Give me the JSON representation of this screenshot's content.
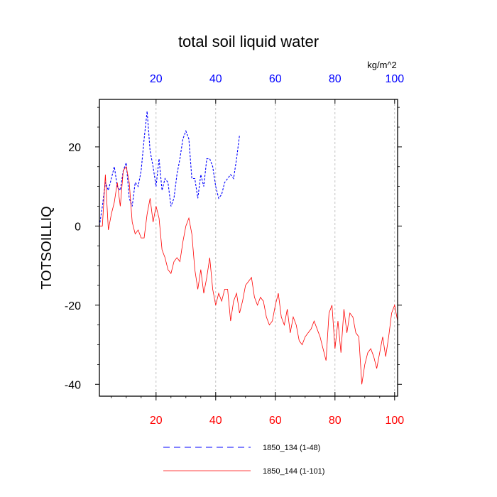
{
  "chart_data": {
    "type": "line",
    "title": "total soil liquid water",
    "units": "kg/m^2",
    "ylabel": "TOTSOILLIQ",
    "xlabel": "",
    "bottom_axis": {
      "ticks": [
        "20",
        "40",
        "60",
        "80",
        "100"
      ],
      "xlim": [
        1,
        101
      ],
      "color": "#ff0000"
    },
    "top_axis": {
      "ticks": [
        "20",
        "40",
        "60",
        "80",
        "100"
      ],
      "xlim": [
        1,
        101
      ],
      "color": "#0000ff"
    },
    "yticks": [
      "20",
      "0",
      "-20",
      "-40"
    ],
    "ylim": [
      -43,
      32
    ],
    "grid": "vertical dashed",
    "legend_position": "bottom",
    "series": [
      {
        "name": "1850_134 (1-48)",
        "color": "#0000ff",
        "dash": "dashed",
        "x": [
          1,
          2,
          3,
          4,
          5,
          6,
          7,
          8,
          9,
          10,
          11,
          12,
          13,
          14,
          15,
          16,
          17,
          18,
          19,
          20,
          21,
          22,
          23,
          24,
          25,
          26,
          27,
          28,
          29,
          30,
          31,
          32,
          33,
          34,
          35,
          36,
          37,
          38,
          39,
          40,
          41,
          42,
          43,
          44,
          45,
          46,
          47,
          48
        ],
        "y": [
          0,
          5,
          11,
          9,
          12,
          15,
          10,
          9,
          14,
          16,
          7,
          5,
          11,
          10,
          14,
          22,
          29,
          19,
          15,
          10,
          17,
          9,
          12,
          11,
          5,
          7,
          13,
          17,
          22,
          24,
          22,
          12,
          12,
          7,
          13,
          10,
          17,
          17,
          15,
          10,
          7,
          8,
          11,
          12,
          13,
          12,
          17,
          23
        ]
      },
      {
        "name": "1850_144 (1-101)",
        "color": "#ff0000",
        "dash": "solid",
        "x": [
          1,
          2,
          3,
          4,
          5,
          6,
          7,
          8,
          9,
          10,
          11,
          12,
          13,
          14,
          15,
          16,
          17,
          18,
          19,
          20,
          21,
          22,
          23,
          24,
          25,
          26,
          27,
          28,
          29,
          30,
          31,
          32,
          33,
          34,
          35,
          36,
          37,
          38,
          39,
          40,
          41,
          42,
          43,
          44,
          45,
          46,
          47,
          48,
          49,
          50,
          51,
          52,
          53,
          54,
          55,
          56,
          57,
          58,
          59,
          60,
          61,
          62,
          63,
          64,
          65,
          66,
          67,
          68,
          69,
          70,
          71,
          72,
          73,
          74,
          75,
          76,
          77,
          78,
          79,
          80,
          81,
          82,
          83,
          84,
          85,
          86,
          87,
          88,
          89,
          90,
          91,
          92,
          93,
          94,
          95,
          96,
          97,
          98,
          99,
          100,
          101
        ],
        "y": [
          0,
          0,
          13,
          -1,
          3,
          6,
          11,
          5,
          14,
          15,
          11,
          1,
          -2,
          -1,
          -3,
          -3,
          3,
          7,
          1,
          5,
          2,
          -6,
          -8,
          -11,
          -12,
          -9,
          -8,
          -9,
          -4,
          0,
          2,
          -2,
          -11,
          -16,
          -11,
          -17,
          -13,
          -8,
          -16,
          -20,
          -17,
          -19,
          -16,
          -16,
          -24,
          -19,
          -17,
          -22,
          -19,
          -15,
          -14,
          -13,
          -18,
          -20,
          -18,
          -19,
          -23,
          -25,
          -24,
          -20,
          -17,
          -23,
          -25,
          -21,
          -27,
          -23,
          -25,
          -29,
          -30,
          -28,
          -27,
          -26,
          -24,
          -26,
          -28,
          -31,
          -34,
          -22,
          -20,
          -31,
          -24,
          -32,
          -21,
          -27,
          -22,
          -23,
          -27,
          -28,
          -40,
          -35,
          -32,
          -31,
          -33,
          -36,
          -32,
          -28,
          -33,
          -28,
          -22,
          -20,
          -24
        ]
      }
    ]
  }
}
